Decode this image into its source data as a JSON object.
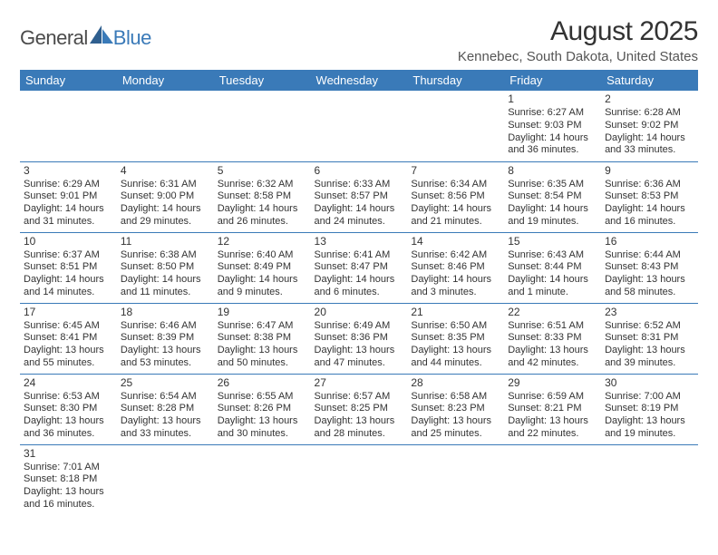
{
  "logo": {
    "a": "General",
    "b": "Blue"
  },
  "title": "August 2025",
  "subtitle": "Kennebec, South Dakota, United States",
  "colors": {
    "header_bg": "#3a7ab8",
    "header_fg": "#ffffff",
    "border": "#3a7ab8",
    "text": "#333333"
  },
  "weekdays": [
    "Sunday",
    "Monday",
    "Tuesday",
    "Wednesday",
    "Thursday",
    "Friday",
    "Saturday"
  ],
  "weeks": [
    [
      null,
      null,
      null,
      null,
      null,
      {
        "d": "1",
        "sr": "Sunrise: 6:27 AM",
        "ss": "Sunset: 9:03 PM",
        "dl": "Daylight: 14 hours and 36 minutes."
      },
      {
        "d": "2",
        "sr": "Sunrise: 6:28 AM",
        "ss": "Sunset: 9:02 PM",
        "dl": "Daylight: 14 hours and 33 minutes."
      }
    ],
    [
      {
        "d": "3",
        "sr": "Sunrise: 6:29 AM",
        "ss": "Sunset: 9:01 PM",
        "dl": "Daylight: 14 hours and 31 minutes."
      },
      {
        "d": "4",
        "sr": "Sunrise: 6:31 AM",
        "ss": "Sunset: 9:00 PM",
        "dl": "Daylight: 14 hours and 29 minutes."
      },
      {
        "d": "5",
        "sr": "Sunrise: 6:32 AM",
        "ss": "Sunset: 8:58 PM",
        "dl": "Daylight: 14 hours and 26 minutes."
      },
      {
        "d": "6",
        "sr": "Sunrise: 6:33 AM",
        "ss": "Sunset: 8:57 PM",
        "dl": "Daylight: 14 hours and 24 minutes."
      },
      {
        "d": "7",
        "sr": "Sunrise: 6:34 AM",
        "ss": "Sunset: 8:56 PM",
        "dl": "Daylight: 14 hours and 21 minutes."
      },
      {
        "d": "8",
        "sr": "Sunrise: 6:35 AM",
        "ss": "Sunset: 8:54 PM",
        "dl": "Daylight: 14 hours and 19 minutes."
      },
      {
        "d": "9",
        "sr": "Sunrise: 6:36 AM",
        "ss": "Sunset: 8:53 PM",
        "dl": "Daylight: 14 hours and 16 minutes."
      }
    ],
    [
      {
        "d": "10",
        "sr": "Sunrise: 6:37 AM",
        "ss": "Sunset: 8:51 PM",
        "dl": "Daylight: 14 hours and 14 minutes."
      },
      {
        "d": "11",
        "sr": "Sunrise: 6:38 AM",
        "ss": "Sunset: 8:50 PM",
        "dl": "Daylight: 14 hours and 11 minutes."
      },
      {
        "d": "12",
        "sr": "Sunrise: 6:40 AM",
        "ss": "Sunset: 8:49 PM",
        "dl": "Daylight: 14 hours and 9 minutes."
      },
      {
        "d": "13",
        "sr": "Sunrise: 6:41 AM",
        "ss": "Sunset: 8:47 PM",
        "dl": "Daylight: 14 hours and 6 minutes."
      },
      {
        "d": "14",
        "sr": "Sunrise: 6:42 AM",
        "ss": "Sunset: 8:46 PM",
        "dl": "Daylight: 14 hours and 3 minutes."
      },
      {
        "d": "15",
        "sr": "Sunrise: 6:43 AM",
        "ss": "Sunset: 8:44 PM",
        "dl": "Daylight: 14 hours and 1 minute."
      },
      {
        "d": "16",
        "sr": "Sunrise: 6:44 AM",
        "ss": "Sunset: 8:43 PM",
        "dl": "Daylight: 13 hours and 58 minutes."
      }
    ],
    [
      {
        "d": "17",
        "sr": "Sunrise: 6:45 AM",
        "ss": "Sunset: 8:41 PM",
        "dl": "Daylight: 13 hours and 55 minutes."
      },
      {
        "d": "18",
        "sr": "Sunrise: 6:46 AM",
        "ss": "Sunset: 8:39 PM",
        "dl": "Daylight: 13 hours and 53 minutes."
      },
      {
        "d": "19",
        "sr": "Sunrise: 6:47 AM",
        "ss": "Sunset: 8:38 PM",
        "dl": "Daylight: 13 hours and 50 minutes."
      },
      {
        "d": "20",
        "sr": "Sunrise: 6:49 AM",
        "ss": "Sunset: 8:36 PM",
        "dl": "Daylight: 13 hours and 47 minutes."
      },
      {
        "d": "21",
        "sr": "Sunrise: 6:50 AM",
        "ss": "Sunset: 8:35 PM",
        "dl": "Daylight: 13 hours and 44 minutes."
      },
      {
        "d": "22",
        "sr": "Sunrise: 6:51 AM",
        "ss": "Sunset: 8:33 PM",
        "dl": "Daylight: 13 hours and 42 minutes."
      },
      {
        "d": "23",
        "sr": "Sunrise: 6:52 AM",
        "ss": "Sunset: 8:31 PM",
        "dl": "Daylight: 13 hours and 39 minutes."
      }
    ],
    [
      {
        "d": "24",
        "sr": "Sunrise: 6:53 AM",
        "ss": "Sunset: 8:30 PM",
        "dl": "Daylight: 13 hours and 36 minutes."
      },
      {
        "d": "25",
        "sr": "Sunrise: 6:54 AM",
        "ss": "Sunset: 8:28 PM",
        "dl": "Daylight: 13 hours and 33 minutes."
      },
      {
        "d": "26",
        "sr": "Sunrise: 6:55 AM",
        "ss": "Sunset: 8:26 PM",
        "dl": "Daylight: 13 hours and 30 minutes."
      },
      {
        "d": "27",
        "sr": "Sunrise: 6:57 AM",
        "ss": "Sunset: 8:25 PM",
        "dl": "Daylight: 13 hours and 28 minutes."
      },
      {
        "d": "28",
        "sr": "Sunrise: 6:58 AM",
        "ss": "Sunset: 8:23 PM",
        "dl": "Daylight: 13 hours and 25 minutes."
      },
      {
        "d": "29",
        "sr": "Sunrise: 6:59 AM",
        "ss": "Sunset: 8:21 PM",
        "dl": "Daylight: 13 hours and 22 minutes."
      },
      {
        "d": "30",
        "sr": "Sunrise: 7:00 AM",
        "ss": "Sunset: 8:19 PM",
        "dl": "Daylight: 13 hours and 19 minutes."
      }
    ],
    [
      {
        "d": "31",
        "sr": "Sunrise: 7:01 AM",
        "ss": "Sunset: 8:18 PM",
        "dl": "Daylight: 13 hours and 16 minutes."
      },
      null,
      null,
      null,
      null,
      null,
      null
    ]
  ]
}
